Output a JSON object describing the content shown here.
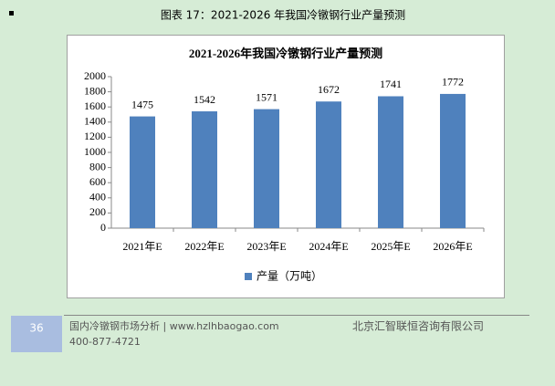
{
  "caption": "图表 17：2021-2026 年我国冷镦钢行业产量预测",
  "chart_data": {
    "type": "bar",
    "title": "2021-2026年我国冷镦钢行业产量预测",
    "categories": [
      "2021年E",
      "2022年E",
      "2023年E",
      "2024年E",
      "2025年E",
      "2026年E"
    ],
    "series": [
      {
        "name": "产量（万吨）",
        "color": "#4f81bd",
        "values": [
          1475,
          1542,
          1571,
          1672,
          1741,
          1772
        ]
      }
    ],
    "ylim": [
      0,
      2000
    ],
    "yticks": [
      0,
      200,
      400,
      600,
      800,
      1000,
      1200,
      1400,
      1600,
      1800,
      2000
    ],
    "grid": false,
    "legend": "bottom"
  },
  "footer": {
    "page_number": "36",
    "report": "国内冷镦钢市场分析 | www.hzlhbaogao.com",
    "phone": "400-877-4721",
    "company": "北京汇智联恒咨询有限公司"
  }
}
